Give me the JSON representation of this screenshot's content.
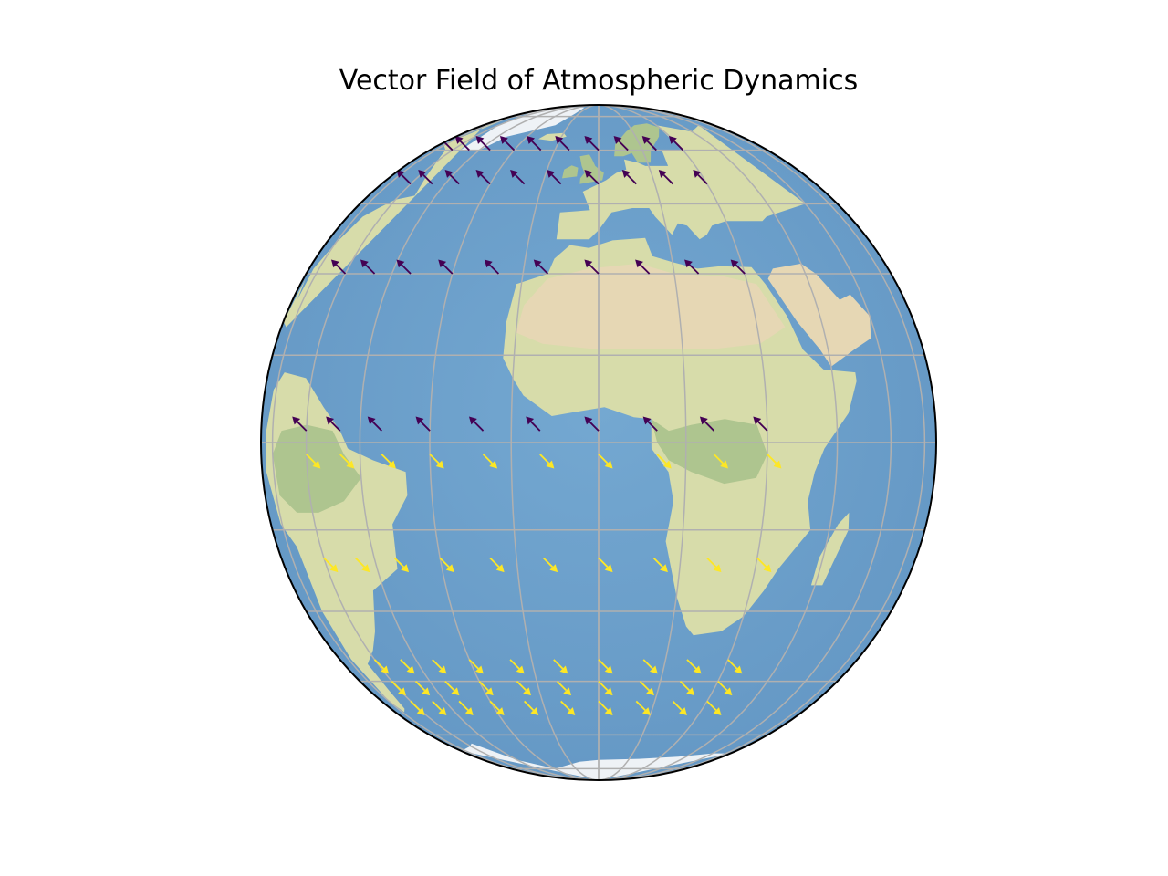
{
  "title": "Vector Field of Atmospheric Dynamics",
  "map": {
    "projection": "orthographic",
    "center_lon": 0,
    "center_lat": 0,
    "gridlines": true,
    "graticule_lons": [
      -75,
      -60,
      -45,
      -30,
      -15,
      0,
      15,
      30,
      45,
      60,
      75
    ],
    "graticule_lats": [
      -75,
      -60,
      -45,
      -30,
      -15,
      0,
      15,
      30,
      45,
      60,
      75
    ],
    "colors": {
      "ocean": "#6a9fcb",
      "land": "#d7dcaa",
      "desert": "#e6d7b4",
      "forest": "#aec58f",
      "ice": "#eef2f6",
      "grid": "#b0b0b0",
      "outline": "#000000"
    }
  },
  "chart_data": {
    "type": "quiver",
    "title": "Vector Field of Atmospheric Dynamics",
    "northern_color": "#440154",
    "southern_color": "#fde725",
    "lons": [
      -60,
      -50,
      -40,
      -30,
      -20,
      -10,
      0,
      10,
      20,
      30
    ],
    "lats_north": [
      60,
      50,
      30,
      2
    ],
    "lats_south": [
      -2,
      -20,
      -40,
      -45,
      -50
    ],
    "northern_vector": {
      "u": -1,
      "v": 1
    },
    "southern_vector": {
      "u": 1,
      "v": -1
    }
  }
}
